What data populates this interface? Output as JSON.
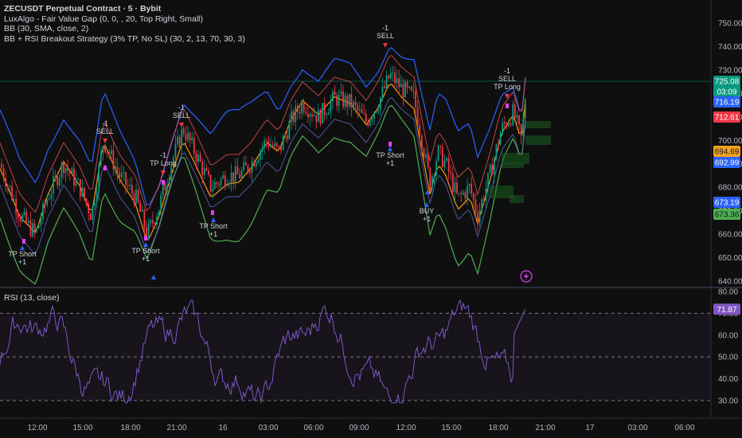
{
  "legend": {
    "symbol": "ZECUSDT Perpetual Contract · 5 · Bybit",
    "ind1": "LuxAlgo - Fair Value Gap (0, 0, , 20, Top Right, Small)",
    "ind2": "BB (30, SMA, close, 2)",
    "ind3": "BB + RSI Breakout Strategy (3% TP, No SL) (30, 2, 13, 70, 30, 3)"
  },
  "rsi_legend": "RSI (13, close)",
  "price_axis": [
    "750.00",
    "740.00",
    "730.00",
    "720.00",
    "710.00",
    "700.00",
    "690.00",
    "680.00",
    "670.00",
    "660.00",
    "650.00",
    "640.00"
  ],
  "rsi_axis": [
    "80.00",
    "70.00",
    "60.00",
    "50.00",
    "40.00",
    "30.00"
  ],
  "time_axis": [
    "12:00",
    "15:00",
    "18:00",
    "21:00",
    "16",
    "03:00",
    "06:00",
    "09:00",
    "12:00",
    "15:00",
    "18:00",
    "21:00",
    "17",
    "03:00",
    "06:00"
  ],
  "price_badges": [
    {
      "text": "725.08",
      "color": "#089981",
      "fg": "#ffffff"
    },
    {
      "text": "03:09",
      "color": "#089981",
      "fg": "#ffffff"
    },
    {
      "text": "716.19",
      "color": "#2962ff",
      "fg": "#ffffff"
    },
    {
      "text": "712.61",
      "color": "#f23645",
      "fg": "#ffffff"
    },
    {
      "text": "694.69",
      "color": "#f7a21b",
      "fg": "#131722"
    },
    {
      "text": "692.99",
      "color": "#2962ff",
      "fg": "#ffffff"
    },
    {
      "text": "673.19",
      "color": "#2962ff",
      "fg": "#ffffff"
    },
    {
      "text": "673.36",
      "color": "#4caf50",
      "fg": "#131722"
    }
  ],
  "rsi_badge": {
    "text": "71.87",
    "color": "#7e57c2",
    "fg": "#ffffff"
  },
  "signals": [
    {
      "lines": [
        "TP Short",
        "+1"
      ]
    },
    {
      "lines": [
        "-1",
        "SELL"
      ]
    },
    {
      "lines": [
        "TP Short",
        "+1"
      ]
    },
    {
      "lines": [
        "-1",
        "TP Long"
      ]
    },
    {
      "lines": [
        "-1",
        "SELL"
      ]
    },
    {
      "lines": [
        "TP Short",
        "+1"
      ]
    },
    {
      "lines": [
        "-1",
        "SELL"
      ]
    },
    {
      "lines": [
        "TP Short",
        "+1"
      ]
    },
    {
      "lines": [
        "BUY",
        "+1"
      ]
    },
    {
      "lines": [
        "-1",
        "SELL",
        "TP Long"
      ]
    }
  ],
  "colors": {
    "up": "#089981",
    "down": "#f23645",
    "bb_upper": "#2962ff",
    "bb_lower": "#4caf50",
    "bb_basis": "#ff9800",
    "rsi": "#7e57c2",
    "fvg": "#1b5e20",
    "alert": "#e040fb"
  },
  "icons": {
    "alert": "lightning-alert-icon"
  }
}
